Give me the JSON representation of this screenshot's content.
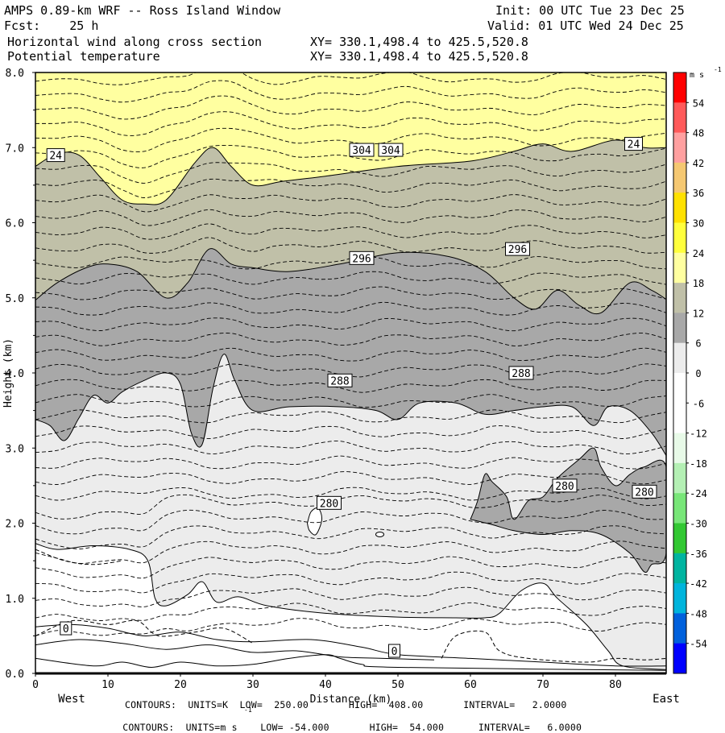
{
  "header": {
    "line1_left": "AMPS 0.89-km WRF -- Ross Island Window",
    "line1_right": "Init: 00 UTC Tue 23 Dec 25",
    "line2_left": "Fcst:    25 h",
    "line2_right": "Valid: 01 UTC Wed 24 Dec 25",
    "line3_left": "Horizontal wind along cross section",
    "line3_right": "XY= 330.1,498.4 to 425.5,520.8",
    "line4_left": "Potential temperature",
    "line4_right": "XY= 330.1,498.4 to 425.5,520.8"
  },
  "footer": {
    "line1": "CONTOURS:  UNITS=K  LOW=  250.00       HIGH=  408.00       INTERVAL=   2.0000",
    "line2": "CONTOURS:  UNITS=m s    LOW= -54.000       HIGH=  54.000      INTERVAL=   6.0000",
    "line2_sup": "-1"
  },
  "chart_data": {
    "type": "heatmap",
    "title": "AMPS 0.89-km WRF -- Ross Island Window",
    "xlabel": "Distance (km)",
    "ylabel": "Height (km)",
    "xlim": [
      0,
      87
    ],
    "ylim": [
      0,
      8
    ],
    "x_ticks": [
      "0",
      "10",
      "20",
      "30",
      "40",
      "50",
      "60",
      "70",
      "80"
    ],
    "y_ticks": [
      "0.0",
      "1.0",
      "2.0",
      "3.0",
      "4.0",
      "5.0",
      "6.0",
      "7.0",
      "8.0"
    ],
    "x_end_labels": {
      "left": "West",
      "right": "East"
    },
    "colorbar": {
      "units": "m s",
      "units_sup": "-1",
      "levels": [
        54,
        48,
        42,
        36,
        30,
        24,
        18,
        12,
        6,
        0,
        -6,
        -12,
        -18,
        -24,
        -30,
        -36,
        -42,
        -48,
        -54
      ],
      "colors": [
        "#ff0000",
        "#ff5a5a",
        "#ffa0a0",
        "#f5c872",
        "#ffe100",
        "#ffff3c",
        "#ffffa0",
        "#c0c0a8",
        "#a8a8a8",
        "#ececec",
        "#ffffff",
        "#ffffff",
        "#e8fae8",
        "#b4f0b4",
        "#78e678",
        "#32c832",
        "#00b4a0",
        "#00b4dc",
        "#0060dc",
        "#0000ff"
      ]
    },
    "wind_speed_bands": [
      {
        "min": 24,
        "max": 30,
        "color": "#ffffa0",
        "lower_boundary_km": [
          [
            0,
            6.75
          ],
          [
            3,
            6.92
          ],
          [
            6,
            6.9
          ],
          [
            9,
            6.6
          ],
          [
            12,
            6.3
          ],
          [
            15,
            6.25
          ],
          [
            18,
            6.3
          ],
          [
            22,
            6.8
          ],
          [
            24.5,
            7.0
          ],
          [
            27,
            6.75
          ],
          [
            30,
            6.5
          ],
          [
            34,
            6.55
          ],
          [
            40,
            6.62
          ],
          [
            50,
            6.75
          ],
          [
            60,
            6.82
          ],
          [
            66,
            6.95
          ],
          [
            70,
            7.05
          ],
          [
            74,
            6.95
          ],
          [
            80,
            7.1
          ],
          [
            84,
            7.0
          ],
          [
            87,
            7.0
          ]
        ]
      },
      {
        "min": 18,
        "max": 24,
        "color": "#c0c0a8",
        "lower_boundary_km": [
          [
            0,
            4.97
          ],
          [
            3,
            5.2
          ],
          [
            7,
            5.4
          ],
          [
            10,
            5.45
          ],
          [
            14,
            5.35
          ],
          [
            18,
            5.0
          ],
          [
            21,
            5.2
          ],
          [
            24,
            5.65
          ],
          [
            27,
            5.45
          ],
          [
            30,
            5.4
          ],
          [
            35,
            5.35
          ],
          [
            42,
            5.45
          ],
          [
            50,
            5.6
          ],
          [
            57,
            5.55
          ],
          [
            62,
            5.35
          ],
          [
            66,
            5.0
          ],
          [
            69,
            4.85
          ],
          [
            72,
            5.1
          ],
          [
            75,
            4.9
          ],
          [
            78,
            4.8
          ],
          [
            82,
            5.2
          ],
          [
            85,
            5.1
          ],
          [
            87,
            4.98
          ]
        ]
      },
      {
        "min": 12,
        "max": 18,
        "color": "#a8a8a8",
        "lower_boundary_km": [
          [
            0,
            3.38
          ],
          [
            2,
            3.3
          ],
          [
            4,
            3.1
          ],
          [
            6,
            3.4
          ],
          [
            8,
            3.7
          ],
          [
            10,
            3.6
          ],
          [
            12,
            3.75
          ],
          [
            15,
            3.9
          ],
          [
            18,
            4.0
          ],
          [
            20,
            3.85
          ],
          [
            21.5,
            3.2
          ],
          [
            23,
            3.05
          ],
          [
            24.5,
            3.8
          ],
          [
            26,
            4.25
          ],
          [
            27.5,
            3.9
          ],
          [
            30,
            3.5
          ],
          [
            35,
            3.55
          ],
          [
            42,
            3.55
          ],
          [
            47,
            3.5
          ],
          [
            50,
            3.38
          ],
          [
            53,
            3.6
          ],
          [
            58,
            3.6
          ],
          [
            62,
            3.45
          ],
          [
            66,
            3.5
          ],
          [
            70,
            3.55
          ],
          [
            74,
            3.55
          ],
          [
            77,
            3.3
          ],
          [
            79,
            3.55
          ],
          [
            82,
            3.5
          ],
          [
            85,
            3.2
          ],
          [
            87,
            2.9
          ]
        ]
      },
      {
        "min": 6,
        "max": 12,
        "color": "#ececec",
        "lower_boundary_km": [
          [
            0,
            1.73
          ],
          [
            3,
            1.65
          ],
          [
            8,
            1.7
          ],
          [
            13,
            1.65
          ],
          [
            15.5,
            1.5
          ],
          [
            16.5,
            1.0
          ],
          [
            18,
            0.9
          ],
          [
            21,
            1.05
          ],
          [
            23,
            1.22
          ],
          [
            25,
            0.95
          ],
          [
            28,
            1.02
          ],
          [
            32,
            0.9
          ],
          [
            40,
            0.8
          ],
          [
            50,
            0.75
          ],
          [
            58,
            0.74
          ],
          [
            62,
            0.74
          ],
          [
            64,
            0.8
          ],
          [
            67,
            1.1
          ],
          [
            70,
            1.2
          ],
          [
            72,
            1.0
          ],
          [
            76,
            0.65
          ],
          [
            79,
            0.3
          ],
          [
            81,
            0.1
          ],
          [
            87,
            0.05
          ]
        ]
      }
    ],
    "embedded_band_12_18_low": {
      "x_range_km": [
        60,
        87
      ],
      "height_range_km": [
        1.35,
        3.0
      ]
    },
    "isotherm_labels_K": [
      {
        "text": "304",
        "x": 45,
        "y": 6.97
      },
      {
        "text": "304",
        "x": 49,
        "y": 6.97
      },
      {
        "text": "296",
        "x": 45,
        "y": 5.53
      },
      {
        "text": "296",
        "x": 66.5,
        "y": 5.65
      },
      {
        "text": "288",
        "x": 42,
        "y": 3.9
      },
      {
        "text": "288",
        "x": 67,
        "y": 4.0
      },
      {
        "text": "280",
        "x": 40.5,
        "y": 2.27
      },
      {
        "text": "280",
        "x": 73,
        "y": 2.5
      },
      {
        "text": "280",
        "x": 84,
        "y": 2.42
      }
    ],
    "wind_labels_ms": [
      {
        "text": "24",
        "x": 2.8,
        "y": 6.9
      },
      {
        "text": "24",
        "x": 82.5,
        "y": 7.05
      },
      {
        "text": "0",
        "x": 4.2,
        "y": 0.6
      },
      {
        "text": "0",
        "x": 49.5,
        "y": 0.3
      }
    ],
    "isotherm_K": {
      "low": 250.0,
      "high": 408.0,
      "interval": 2.0
    },
    "wind_ms": {
      "low": -54.0,
      "high": 54.0,
      "interval": 6.0
    }
  }
}
